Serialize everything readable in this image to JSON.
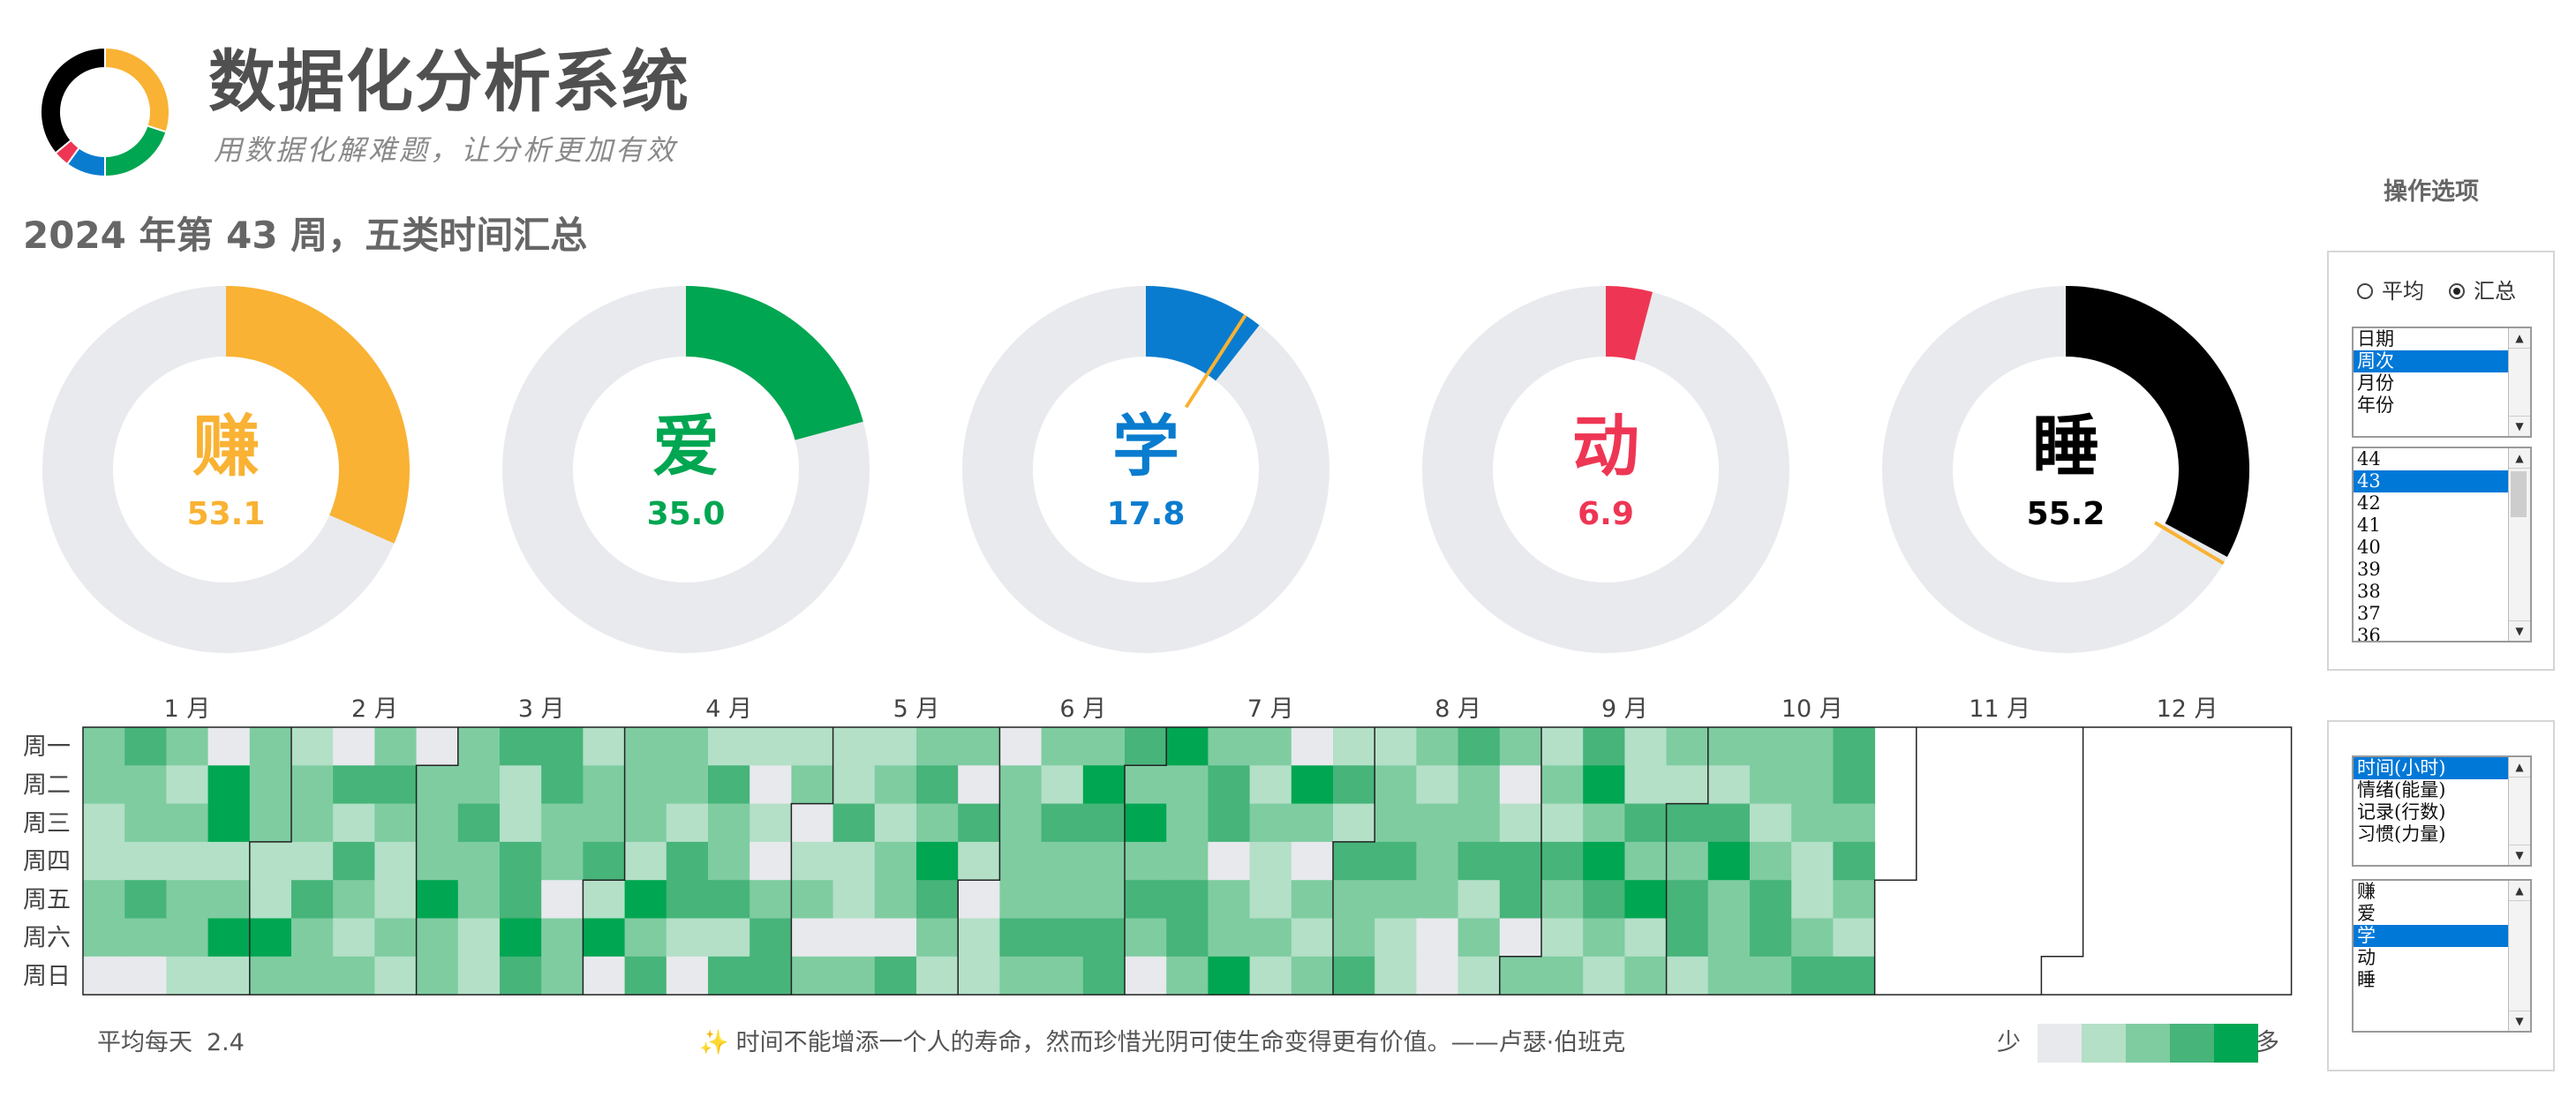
{
  "app": {
    "title": "数据化分析系统",
    "subtitle": "用数据化解难题，让分析更加有效"
  },
  "logo_segments": [
    {
      "color": "#f9b233",
      "value": 30
    },
    {
      "color": "#00a651",
      "value": 20
    },
    {
      "color": "#0a7ccf",
      "value": 10
    },
    {
      "color": "#ee3654",
      "value": 4
    },
    {
      "color": "#000000",
      "value": 36
    }
  ],
  "week_heading": "2024 年第 43 周，五类时间汇总",
  "categories": [
    {
      "char": "赚",
      "value": "53.1",
      "fraction": 0.316,
      "color": "#f9b233"
    },
    {
      "char": "爱",
      "value": "35.0",
      "fraction": 0.208,
      "color": "#00a651"
    },
    {
      "char": "学",
      "value": "17.8",
      "fraction": 0.106,
      "color": "#0a7ccf"
    },
    {
      "char": "动",
      "value": "6.9",
      "fraction": 0.041,
      "color": "#ee3654"
    },
    {
      "char": "睡",
      "value": "55.2",
      "fraction": 0.329,
      "color": "#000000"
    }
  ],
  "heatmap": {
    "months": [
      "1 月",
      "2 月",
      "3 月",
      "4 月",
      "5 月",
      "6 月",
      "7 月",
      "8 月",
      "9 月",
      "10 月",
      "11 月",
      "12 月"
    ],
    "weekdays": [
      "周一",
      "周二",
      "周三",
      "周四",
      "周五",
      "周六",
      "周日"
    ],
    "palette": [
      "#e7e9ec",
      "#b3e0c7",
      "#7fcca1",
      "#47b47a",
      "#00a651"
    ]
  },
  "footer": {
    "avg_label": "平均每天",
    "avg_value": "2.4",
    "quote": "时间不能增添一个人的寿命，然而珍惜光阴可使生命变得更有价值。——卢瑟·伯班克",
    "legend_less": "少",
    "legend_more": "多"
  },
  "controls": {
    "title": "操作选项",
    "radio_avg": "平均",
    "radio_sum": "汇总",
    "selected_radio": "汇总",
    "period_types": [
      "日期",
      "周次",
      "月份",
      "年份"
    ],
    "period_selected": "周次",
    "weeks": [
      "44",
      "43",
      "42",
      "41",
      "40",
      "39",
      "38",
      "37",
      "36"
    ],
    "week_selected": "43",
    "metrics": [
      "时间(小时)",
      "情绪(能量)",
      "记录(行数)",
      "习惯(力量)"
    ],
    "metric_selected": "时间(小时)",
    "category_list": [
      "赚",
      "爱",
      "学",
      "动",
      "睡"
    ],
    "category_selected": "学"
  }
}
